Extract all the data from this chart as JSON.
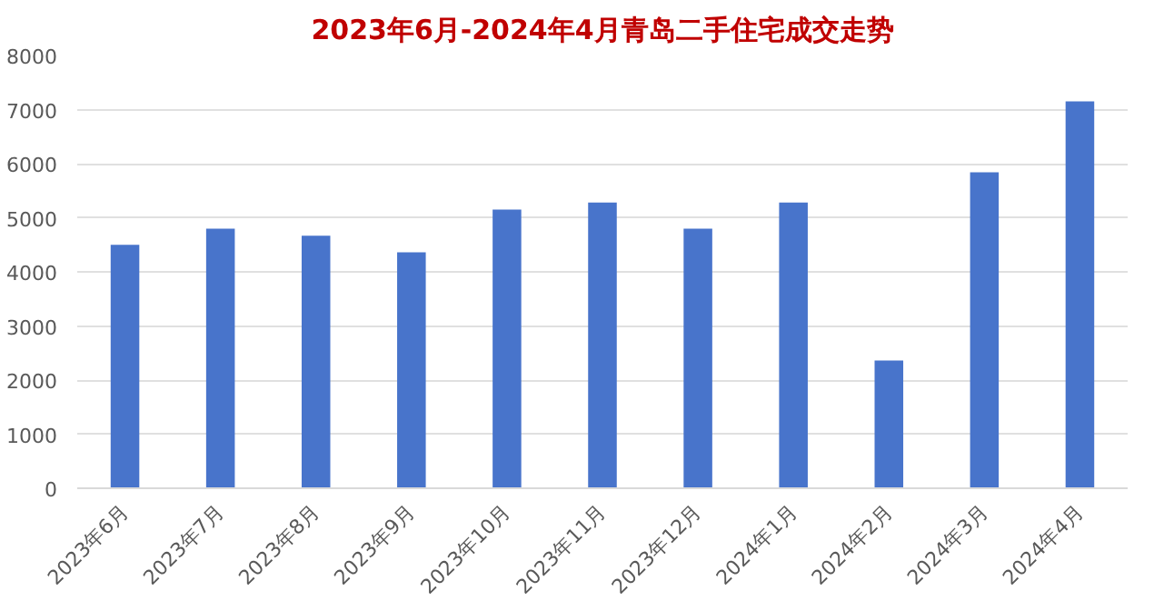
{
  "chart_data": {
    "type": "bar",
    "title": "2023年6月-2024年4月青岛二手住宅成交走势",
    "categories": [
      "2023年6月",
      "2023年7月",
      "2023年8月",
      "2023年9月",
      "2023年10月",
      "2023年11月",
      "2023年12月",
      "2024年1月",
      "2024年2月",
      "2024年3月",
      "2024年4月"
    ],
    "values": [
      4500,
      4800,
      4670,
      4360,
      5150,
      5280,
      4800,
      5280,
      2360,
      5840,
      7150
    ],
    "color": "#4874cb",
    "ylim": [
      0,
      8000
    ],
    "yticks": [
      0,
      1000,
      2000,
      3000,
      4000,
      5000,
      6000,
      7000,
      8000
    ],
    "grid": "y"
  }
}
